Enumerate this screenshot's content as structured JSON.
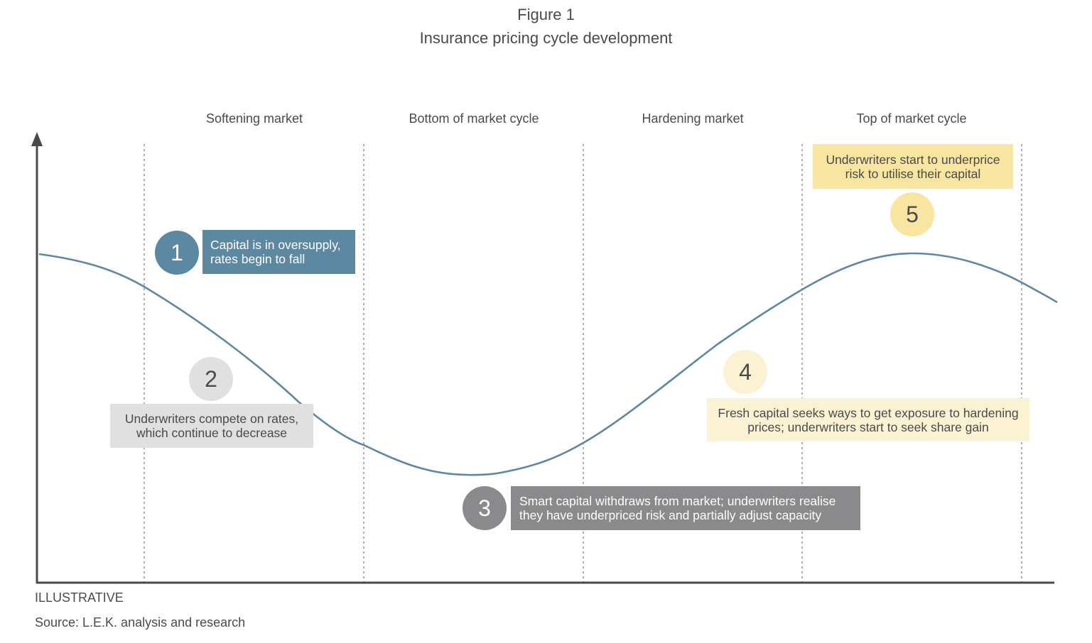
{
  "figure": {
    "label": "Figure 1",
    "title": "Insurance pricing cycle development"
  },
  "phases": [
    "Softening market",
    "Bottom of market cycle",
    "Hardening market",
    "Top of market cycle"
  ],
  "stages": [
    {
      "number": "1",
      "text": "Capital is in oversupply, rates begin to fall",
      "color": "#5d88a2"
    },
    {
      "number": "2",
      "text": "Underwriters compete on rates, which continue to decrease",
      "color": "#e1e0e0"
    },
    {
      "number": "3",
      "text": "Smart capital withdraws from market; underwriters realise they have underpriced risk and partially adjust capacity",
      "color": "#8a898b"
    },
    {
      "number": "4",
      "text": "Fresh capital seeks ways to get exposure to hardening prices; underwriters start to seek share gain",
      "color": "#fbf1d3"
    },
    {
      "number": "5",
      "text": "Underwriters start to underprice risk to utilise their capital",
      "color": "#f8e6a0"
    }
  ],
  "footer": {
    "illustrative": "ILLUSTRATIVE",
    "source": "Source: L.E.K. analysis and research"
  },
  "colors": {
    "curve": "#5d88a2",
    "axis": "#4a4a4a",
    "divider": "#777777"
  }
}
